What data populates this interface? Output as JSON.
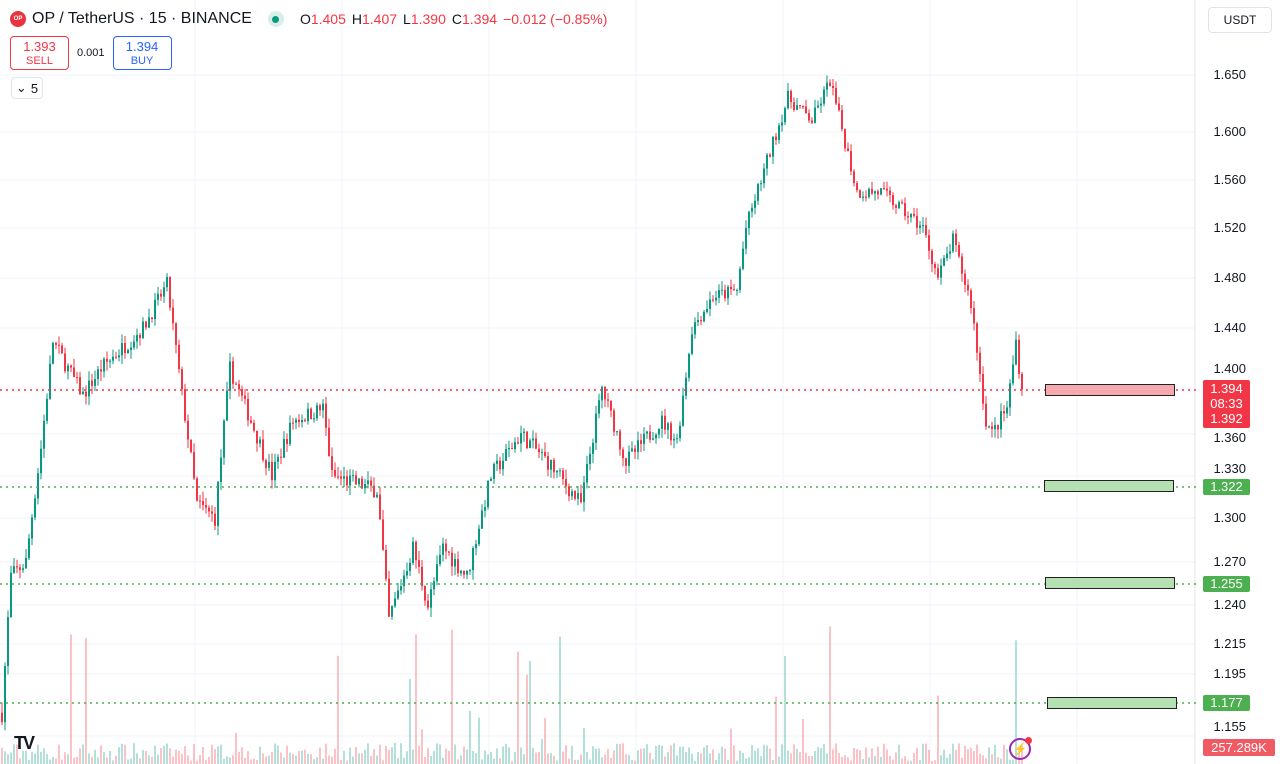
{
  "header": {
    "logo_text": "OP",
    "symbol": "OP / TetherUS · 15 · BINANCE",
    "status_icon": "market-open-dot",
    "ohlc": {
      "o_label": "O",
      "o": "1.405",
      "h_label": "H",
      "h": "1.407",
      "l_label": "L",
      "l": "1.390",
      "c_label": "C",
      "c": "1.394",
      "change": "−0.012 (−0.85%)"
    }
  },
  "trade": {
    "sell_price": "1.393",
    "sell_label": "SELL",
    "spread": "0.001",
    "buy_price": "1.394",
    "buy_label": "BUY"
  },
  "indicators_toggle": {
    "count": "5"
  },
  "currency": "USDT",
  "price_axis": [
    "1.650",
    "1.600",
    "1.560",
    "1.520",
    "1.480",
    "1.440",
    "1.400",
    "1.360",
    "1.330",
    "1.300",
    "1.270",
    "1.240",
    "1.215",
    "1.195",
    "1.155"
  ],
  "last_price": {
    "price": "1.394",
    "countdown": "08:33",
    "price2": "1.392"
  },
  "levels": [
    {
      "price": "1.322"
    },
    {
      "price": "1.255"
    },
    {
      "price": "1.177"
    }
  ],
  "volume_label": "257.289K",
  "colors": {
    "up": "#089981",
    "down": "#f23645",
    "level_green": "#4caf50",
    "level_red": "#f23645"
  },
  "chart_data": {
    "type": "candlestick",
    "interval": "15",
    "price_path": [
      [
        0,
        1.17
      ],
      [
        3,
        1.26
      ],
      [
        8,
        1.27
      ],
      [
        13,
        1.35
      ],
      [
        17,
        1.43
      ],
      [
        27,
        1.39
      ],
      [
        33,
        1.41
      ],
      [
        47,
        1.44
      ],
      [
        55,
        1.475
      ],
      [
        60,
        1.39
      ],
      [
        65,
        1.31
      ],
      [
        71,
        1.3
      ],
      [
        76,
        1.41
      ],
      [
        83,
        1.37
      ],
      [
        90,
        1.33
      ],
      [
        97,
        1.37
      ],
      [
        107,
        1.38
      ],
      [
        110,
        1.33
      ],
      [
        125,
        1.32
      ],
      [
        129,
        1.23
      ],
      [
        137,
        1.28
      ],
      [
        142,
        1.24
      ],
      [
        147,
        1.28
      ],
      [
        155,
        1.26
      ],
      [
        163,
        1.33
      ],
      [
        173,
        1.36
      ],
      [
        182,
        1.34
      ],
      [
        193,
        1.31
      ],
      [
        200,
        1.395
      ],
      [
        208,
        1.34
      ],
      [
        220,
        1.37
      ],
      [
        225,
        1.355
      ],
      [
        230,
        1.44
      ],
      [
        237,
        1.465
      ],
      [
        245,
        1.47
      ],
      [
        248,
        1.52
      ],
      [
        253,
        1.56
      ],
      [
        262,
        1.63
      ],
      [
        270,
        1.61
      ],
      [
        276,
        1.645
      ],
      [
        285,
        1.55
      ],
      [
        293,
        1.55
      ],
      [
        307,
        1.52
      ],
      [
        312,
        1.48
      ],
      [
        317,
        1.51
      ],
      [
        323,
        1.46
      ],
      [
        328,
        1.37
      ],
      [
        330,
        1.36
      ],
      [
        335,
        1.38
      ],
      [
        338,
        1.43
      ],
      [
        340,
        1.394
      ]
    ]
  }
}
